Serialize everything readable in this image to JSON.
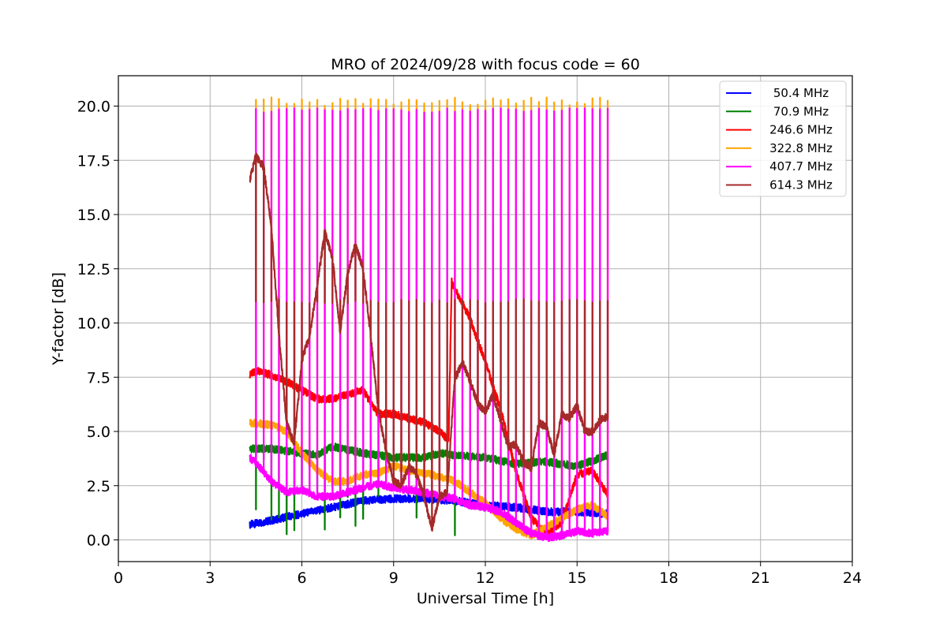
{
  "chart_data": {
    "type": "line",
    "title": "MRO of 2024/09/28 with focus code = 60",
    "xlabel": "Universal Time [h]",
    "ylabel": "Y-factor [dB]",
    "xlim": [
      0,
      24
    ],
    "ylim": [
      -1.0,
      21.4
    ],
    "xticks": [
      0,
      3,
      6,
      9,
      12,
      15,
      18,
      21,
      24
    ],
    "xtick_labels": [
      "0",
      "3",
      "6",
      "9",
      "12",
      "15",
      "18",
      "21",
      "24"
    ],
    "yticks": [
      0.0,
      2.5,
      5.0,
      7.5,
      10.0,
      12.5,
      15.0,
      17.5,
      20.0
    ],
    "ytick_labels": [
      "0.0",
      "2.5",
      "5.0",
      "7.5",
      "10.0",
      "12.5",
      "15.0",
      "17.5",
      "20.0"
    ],
    "grid": true,
    "legend_position": "top-right",
    "calibration_spikes": {
      "start": 4.5,
      "end": 16.0,
      "interval": 0.25,
      "peaks": {
        "70.9 MHz": [
          0.2,
          3.8
        ],
        "322.8 MHz": [
          20.0,
          20.4
        ],
        "407.7 MHz": [
          19.7,
          19.9
        ],
        "614.3 MHz": [
          10.9,
          11.1
        ]
      }
    },
    "series": [
      {
        "name": "50.4 MHz",
        "color": "#0000ff",
        "x": [
          4.3,
          5.0,
          6.0,
          7.0,
          8.0,
          9.0,
          10.0,
          11.0,
          12.0,
          13.0,
          14.0,
          15.0,
          16.0
        ],
        "y": [
          0.7,
          0.9,
          1.2,
          1.5,
          1.8,
          1.9,
          1.9,
          1.8,
          1.6,
          1.5,
          1.3,
          1.3,
          1.2
        ]
      },
      {
        "name": "70.9 MHz",
        "color": "#008000",
        "x": [
          4.3,
          5.0,
          6.0,
          6.5,
          7.0,
          8.0,
          9.0,
          10.0,
          10.5,
          11.0,
          12.0,
          13.0,
          14.0,
          15.0,
          16.0
        ],
        "y": [
          4.2,
          4.2,
          4.0,
          3.9,
          4.3,
          4.0,
          3.8,
          3.8,
          4.0,
          3.9,
          3.8,
          3.5,
          3.6,
          3.4,
          3.9
        ]
      },
      {
        "name": "246.6 MHz",
        "color": "#ff0000",
        "x": [
          4.3,
          4.5,
          5.0,
          5.5,
          6.0,
          6.5,
          7.0,
          7.5,
          8.0,
          8.5,
          9.0,
          9.5,
          10.0,
          10.5,
          10.8,
          10.9,
          11.5,
          12.0,
          12.5,
          13.0,
          13.5,
          14.0,
          14.5,
          15.0,
          15.5,
          16.0
        ],
        "y": [
          7.6,
          7.8,
          7.6,
          7.3,
          6.9,
          6.5,
          6.5,
          6.7,
          6.9,
          5.8,
          5.8,
          5.6,
          5.4,
          5.0,
          4.6,
          11.9,
          10.2,
          8.2,
          6.0,
          3.2,
          1.0,
          0.3,
          0.8,
          3.0,
          3.2,
          2.1
        ]
      },
      {
        "name": "322.8 MHz",
        "color": "#ffa500",
        "x": [
          4.3,
          5.0,
          5.5,
          6.0,
          6.5,
          7.0,
          7.5,
          8.0,
          8.5,
          9.0,
          9.5,
          10.0,
          10.5,
          11.0,
          11.5,
          12.0,
          12.5,
          13.0,
          13.5,
          14.0,
          14.5,
          15.0,
          15.5,
          16.0
        ],
        "y": [
          5.4,
          5.3,
          5.0,
          4.0,
          3.2,
          2.7,
          2.7,
          3.0,
          3.1,
          3.4,
          3.2,
          3.1,
          2.9,
          2.7,
          2.2,
          1.7,
          1.0,
          0.5,
          0.2,
          0.6,
          1.0,
          1.4,
          1.6,
          1.1
        ]
      },
      {
        "name": "407.7 MHz",
        "color": "#ff00ff",
        "x": [
          4.3,
          4.6,
          5.0,
          5.5,
          6.0,
          6.5,
          7.0,
          7.5,
          8.0,
          8.5,
          9.0,
          9.5,
          10.0,
          10.5,
          11.0,
          11.5,
          12.0,
          12.5,
          13.0,
          13.5,
          14.0,
          14.5,
          15.0,
          15.5,
          16.0
        ],
        "y": [
          3.8,
          3.4,
          2.7,
          2.2,
          2.3,
          2.0,
          2.0,
          2.2,
          2.4,
          2.6,
          2.4,
          2.3,
          2.2,
          2.0,
          1.9,
          1.6,
          1.5,
          1.3,
          0.8,
          0.3,
          0.1,
          0.2,
          0.4,
          0.3,
          0.4
        ]
      },
      {
        "name": "614.3 MHz",
        "color": "#a52a2a",
        "x": [
          4.3,
          4.5,
          4.75,
          5.0,
          5.25,
          5.5,
          5.75,
          6.0,
          6.25,
          6.5,
          6.75,
          7.0,
          7.25,
          7.5,
          7.75,
          8.0,
          8.25,
          8.5,
          8.75,
          9.0,
          9.25,
          9.5,
          9.75,
          10.0,
          10.25,
          10.5,
          10.75,
          11.0,
          11.25,
          11.5,
          11.75,
          12.0,
          12.25,
          12.5,
          12.75,
          13.0,
          13.25,
          13.5,
          13.75,
          14.0,
          14.25,
          14.5,
          14.75,
          15.0,
          15.25,
          15.5,
          15.75,
          16.0
        ],
        "y": [
          16.6,
          17.7,
          17.2,
          14.5,
          9.5,
          5.4,
          4.4,
          8.3,
          9.4,
          11.7,
          14.2,
          13.0,
          9.6,
          12.3,
          13.6,
          12.5,
          9.4,
          6.0,
          4.1,
          2.7,
          2.5,
          3.4,
          3.0,
          2.0,
          0.5,
          2.0,
          2.2,
          7.4,
          8.2,
          7.3,
          6.3,
          5.9,
          6.7,
          5.5,
          4.3,
          4.4,
          3.6,
          3.3,
          5.4,
          5.2,
          3.9,
          5.8,
          5.6,
          6.2,
          5.0,
          5.0,
          5.5,
          5.7
        ]
      }
    ]
  }
}
